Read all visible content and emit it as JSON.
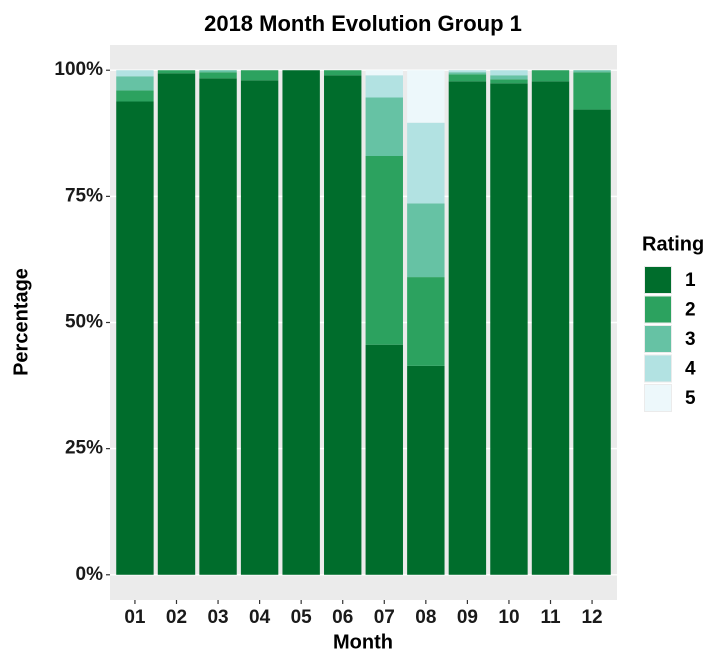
{
  "chart_data": {
    "type": "stacked_bar",
    "title": "2018 Month Evolution Group 1",
    "x_label": "Month",
    "y_label": "Percentage",
    "legend_title": "Rating",
    "categories": [
      "01",
      "02",
      "03",
      "04",
      "05",
      "06",
      "07",
      "08",
      "09",
      "10",
      "11",
      "12"
    ],
    "series": [
      {
        "name": "1",
        "color": "#006d2c",
        "values": [
          93.8,
          99.4,
          98.4,
          98.0,
          100,
          99.0,
          45.6,
          41.4,
          97.8,
          97.4,
          97.8,
          92.2
        ]
      },
      {
        "name": "2",
        "color": "#2ca25f",
        "values": [
          2.2,
          0.6,
          1.2,
          2.0,
          0,
          1.0,
          37.4,
          17.6,
          1.4,
          0.8,
          2.2,
          7.4
        ]
      },
      {
        "name": "3",
        "color": "#66c2a4",
        "values": [
          2.8,
          0,
          0.4,
          0,
          0,
          0,
          11.6,
          14.6,
          0.4,
          0.8,
          0,
          0.4
        ]
      },
      {
        "name": "4",
        "color": "#b2e2e2",
        "values": [
          1.2,
          0,
          0,
          0,
          0,
          0,
          4.4,
          16.0,
          0.4,
          1.0,
          0,
          0
        ]
      },
      {
        "name": "5",
        "color": "#edf8fb",
        "values": [
          0,
          0,
          0,
          0,
          0,
          0,
          1.0,
          10.4,
          0,
          0,
          0,
          0
        ]
      }
    ],
    "ylim": [
      -5,
      105
    ],
    "yticks": [
      {
        "value": 0,
        "label": "0%"
      },
      {
        "value": 25,
        "label": "25%"
      },
      {
        "value": 50,
        "label": "50%"
      },
      {
        "value": 75,
        "label": "75%"
      },
      {
        "value": 100,
        "label": "100%"
      }
    ],
    "grid": true
  }
}
